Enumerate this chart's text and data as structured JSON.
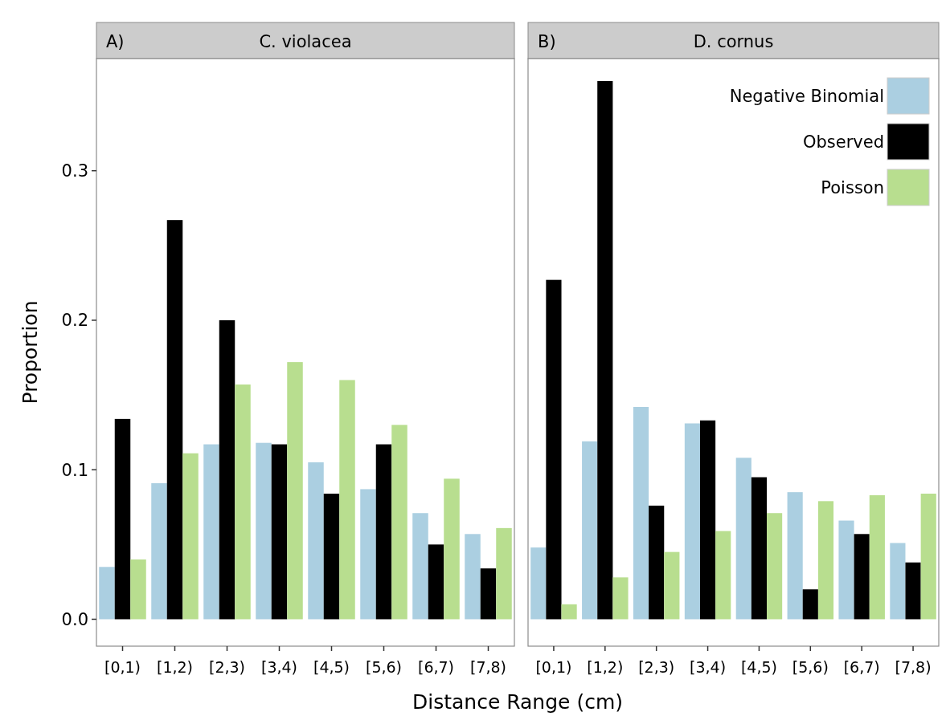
{
  "chart_data": [
    {
      "type": "bar",
      "title": "C. violacea",
      "annotations": [
        "A)"
      ],
      "xlabel": "Distance Range (cm)",
      "ylabel": "Proportion",
      "categories": [
        "[0,1)",
        "[1,2)",
        "[2,3)",
        "[3,4)",
        "[4,5)",
        "[5,6)",
        "[6,7)",
        "[7,8)"
      ],
      "series": [
        {
          "color": "#abcfe1",
          "values": [
            0.035,
            0.091,
            0.117,
            0.118,
            0.105,
            0.087,
            0.071,
            0.057
          ]
        },
        {
          "color": "#000000",
          "values": [
            0.134,
            0.267,
            0.2,
            0.117,
            0.084,
            0.117,
            0.05,
            0.034
          ]
        },
        {
          "color": "#b8de8f",
          "values": [
            0.04,
            0.111,
            0.157,
            0.172,
            0.16,
            0.13,
            0.094,
            0.061
          ]
        }
      ],
      "ylim": [
        -0.018,
        0.375
      ],
      "yticks": [
        {
          "value": 0,
          "label": "0.0"
        },
        0.1,
        0.2,
        0.3
      ],
      "grid": false,
      "legend": false
    },
    {
      "type": "bar",
      "title": "D. cornus",
      "annotations": [
        "B)"
      ],
      "categories": [
        "[0,1)",
        "[1,2)",
        "[2,3)",
        "[3,4)",
        "[4,5)",
        "[5,6)",
        "[6,7)",
        "[7,8)"
      ],
      "series": [
        {
          "name": "Negative Binomial",
          "color": "#abcfe1",
          "values": [
            0.048,
            0.119,
            0.142,
            0.131,
            0.108,
            0.085,
            0.066,
            0.051
          ]
        },
        {
          "name": "Observed",
          "color": "#000000",
          "values": [
            0.227,
            0.36,
            0.076,
            0.133,
            0.095,
            0.02,
            0.057,
            0.038
          ]
        },
        {
          "name": "Poisson",
          "color": "#b8de8f",
          "values": [
            0.01,
            0.028,
            0.045,
            0.059,
            0.071,
            0.079,
            0.083,
            0.084
          ]
        }
      ],
      "ylim": [
        -0.018,
        0.375
      ],
      "grid": false,
      "legend": "top right",
      "tick_labels": "x"
    }
  ]
}
